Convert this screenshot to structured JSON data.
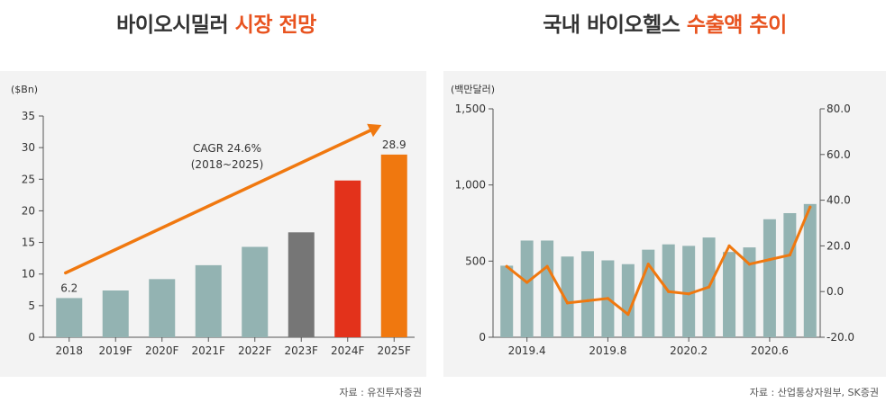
{
  "left": {
    "title_main": "바이오시밀러",
    "title_highlight": "시장 전망",
    "source": "자료 : 유진투자증권",
    "chart_data": {
      "type": "bar",
      "title": "바이오시밀러 시장 전망",
      "unit_label": "($Bn)",
      "categories": [
        "2018",
        "2019F",
        "2020F",
        "2021F",
        "2022F",
        "2023F",
        "2024F",
        "2025F"
      ],
      "values": [
        6.2,
        7.4,
        9.2,
        11.4,
        14.3,
        16.6,
        24.8,
        28.9
      ],
      "colors": [
        "#93b3b2",
        "#93b3b2",
        "#93b3b2",
        "#93b3b2",
        "#93b3b2",
        "#767676",
        "#e3321b",
        "#f0780f"
      ],
      "value_labels": [
        {
          "index": 0,
          "text": "6.2"
        },
        {
          "index": 7,
          "text": "28.9"
        }
      ],
      "ylim": [
        0,
        35
      ],
      "yticks": [
        0,
        5,
        10,
        15,
        20,
        25,
        30,
        35
      ],
      "annotation": {
        "line1": "CAGR 24.6%",
        "line2": "(2018~2025)",
        "arrow_color": "#f0780f"
      }
    }
  },
  "right": {
    "title_main": "국내 바이오헬스",
    "title_highlight": "수출액 추이",
    "source": "자료 : 산업통상자원부, SK증권",
    "chart_data": {
      "type": "bar+line",
      "title": "국내 바이오헬스 수출액 추이",
      "unit_label": "(백만달러)",
      "bar_color": "#93b3b2",
      "line_color": "#f0780f",
      "bars": [
        470,
        635,
        635,
        530,
        565,
        505,
        480,
        575,
        610,
        600,
        655,
        560,
        590,
        775,
        815,
        875
      ],
      "line": [
        11,
        4,
        11,
        -5,
        -4,
        -3,
        -10,
        12,
        0,
        -1,
        2,
        20,
        12,
        14,
        16,
        37
      ],
      "ylim_left": [
        0,
        1500
      ],
      "yticks_left": [
        {
          "v": 0,
          "label": "0"
        },
        {
          "v": 500,
          "label": "500"
        },
        {
          "v": 1000,
          "label": "1,000"
        },
        {
          "v": 1500,
          "label": "1,500"
        }
      ],
      "ylim_right": [
        -20,
        80
      ],
      "yticks_right": [
        {
          "v": -20,
          "label": "-20.0"
        },
        {
          "v": 0,
          "label": "0.0"
        },
        {
          "v": 20,
          "label": "20.0"
        },
        {
          "v": 40,
          "label": "40.0"
        },
        {
          "v": 60,
          "label": "60.0"
        },
        {
          "v": 80,
          "label": "80.0"
        }
      ],
      "xticks": [
        {
          "index": 1,
          "label": "2019.4"
        },
        {
          "index": 5,
          "label": "2019.8"
        },
        {
          "index": 9,
          "label": "2020.2"
        },
        {
          "index": 13,
          "label": "2020.6"
        }
      ]
    }
  }
}
